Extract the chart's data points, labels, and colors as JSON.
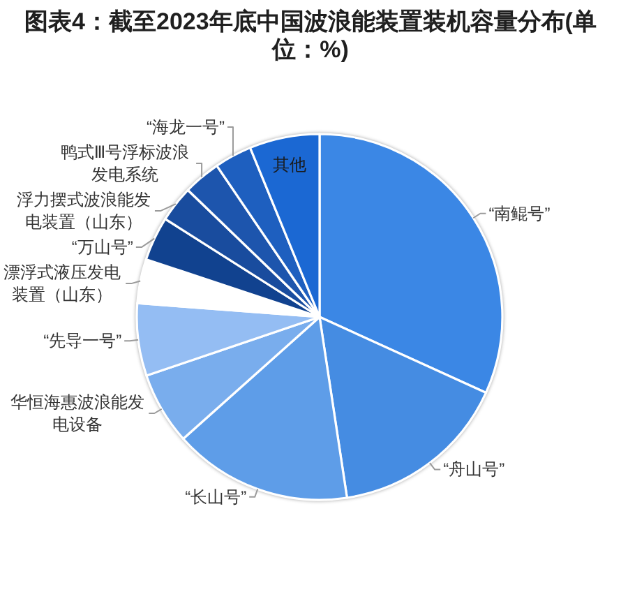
{
  "chart_data": {
    "type": "pie",
    "title": "图表4：截至2023年底中国波浪能装置装机容量分布(单位：%)",
    "categories": [
      "“南鲲号”",
      "“舟山号”",
      "“长山号”",
      "华恒海惠波浪能发电设备",
      "“先导一号”",
      "漂浮式液压发电装置（山东）",
      "“万山号”",
      "浮力摆式波浪能发电装置（山东）",
      "鸭式Ⅲ号浮标波浪发电系统",
      "“海龙一号”",
      "其他"
    ],
    "values": [
      31.8,
      15.8,
      15.8,
      6.4,
      6.4,
      3.9,
      3.9,
      3.2,
      3.3,
      3.3,
      6.2
    ],
    "colors": [
      "#3b87e5",
      "#458ce2",
      "#5e9de8",
      "#79aded",
      "#94bdf3",
      "#ffffff",
      "#11428f",
      "#194c9e",
      "#1d55ad",
      "#1e5fbf",
      "#1b68d3"
    ]
  }
}
